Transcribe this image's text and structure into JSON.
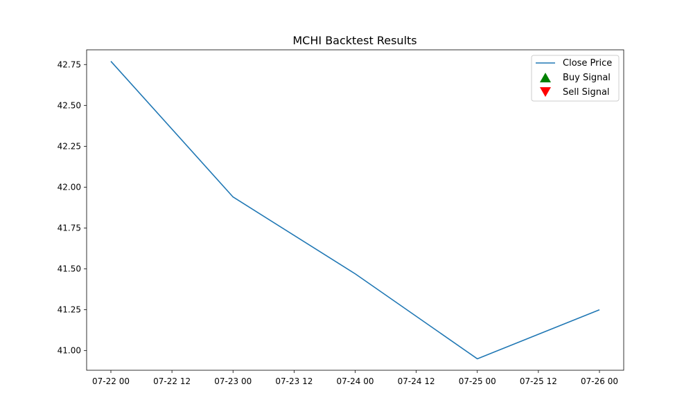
{
  "chart_data": {
    "type": "line",
    "title": "MCHI Backtest Results",
    "xlabel": "",
    "ylabel": "",
    "x": [
      "07-22 00",
      "07-23 00",
      "07-24 00",
      "07-25 00",
      "07-26 00"
    ],
    "x_ticks": [
      "07-22 00",
      "07-22 12",
      "07-23 00",
      "07-23 12",
      "07-24 00",
      "07-24 12",
      "07-25 00",
      "07-25 12",
      "07-26 00"
    ],
    "y_ticks": [
      "41.00",
      "41.25",
      "41.50",
      "41.75",
      "42.00",
      "42.25",
      "42.50",
      "42.75"
    ],
    "ylim": [
      40.88,
      42.84
    ],
    "series": [
      {
        "name": "Close Price",
        "color": "#1f77b4",
        "values": [
          42.77,
          41.94,
          41.47,
          40.95,
          41.25
        ]
      }
    ],
    "legend": {
      "position": "top-right",
      "entries": [
        {
          "label": "Close Price",
          "marker": "line",
          "color": "#1f77b4"
        },
        {
          "label": "Buy Signal",
          "marker": "triangle-up",
          "color": "#008000"
        },
        {
          "label": "Sell Signal",
          "marker": "triangle-down",
          "color": "#ff0000"
        }
      ]
    },
    "grid": false
  }
}
